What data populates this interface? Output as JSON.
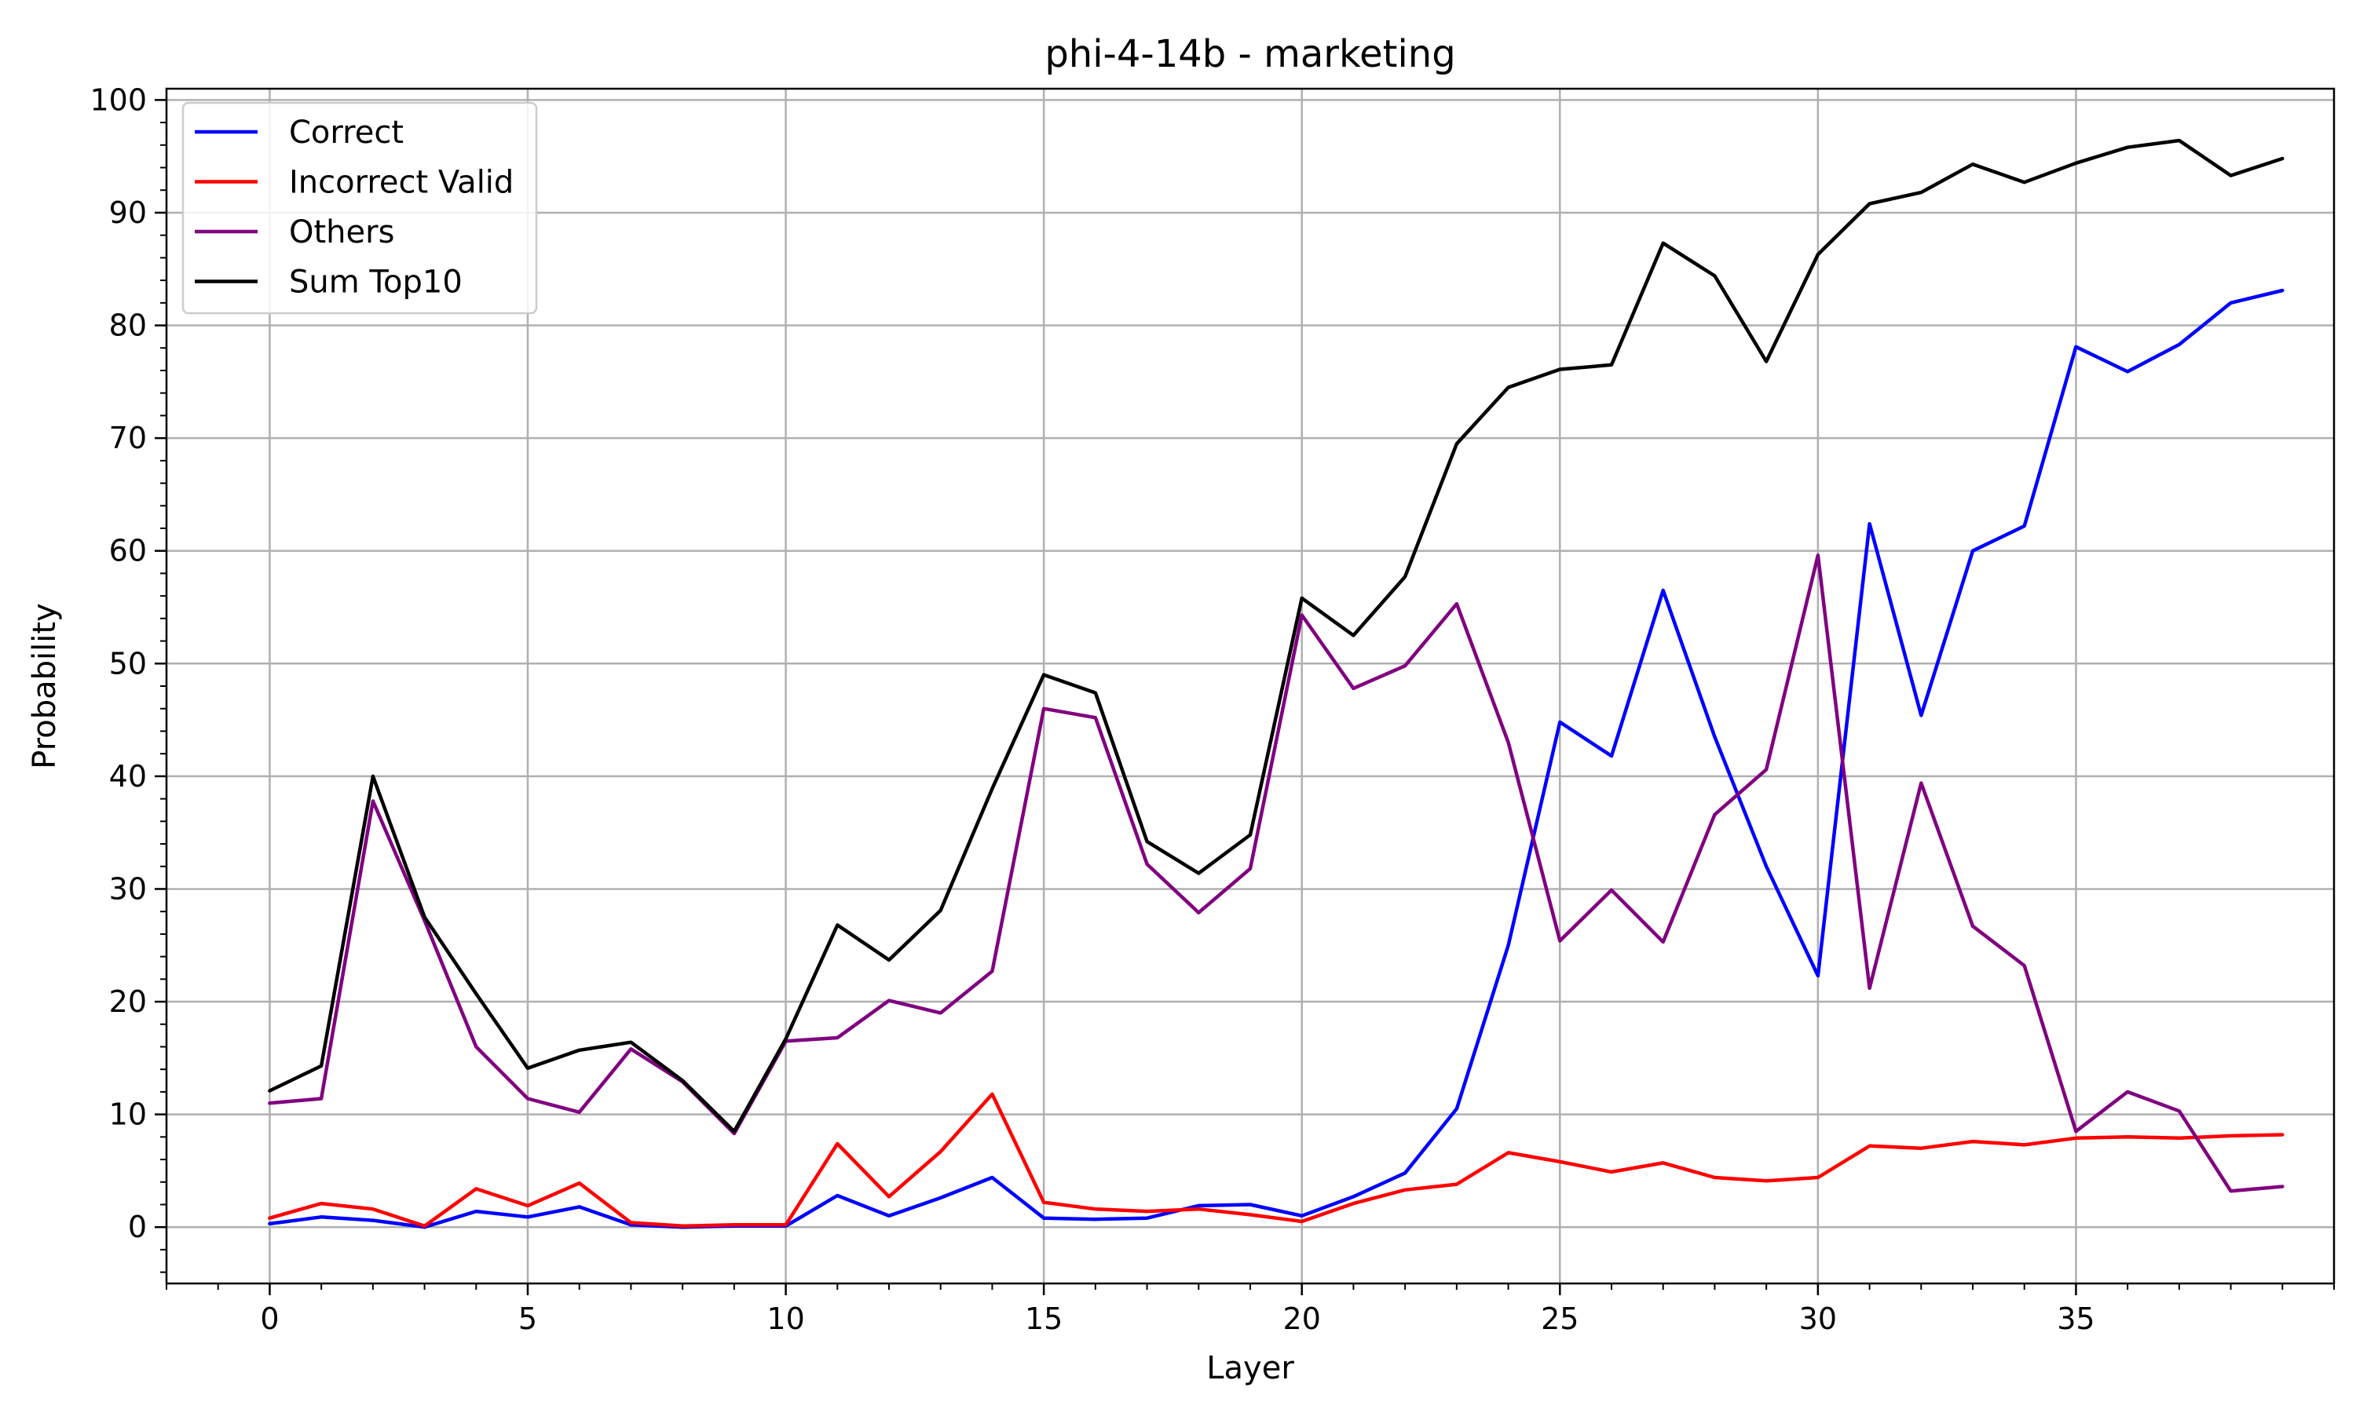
{
  "chart_data": {
    "type": "line",
    "title": "phi-4-14b - marketing",
    "xlabel": "Layer",
    "ylabel": "Probability",
    "xlim": [
      -2,
      40
    ],
    "ylim": [
      -5,
      101
    ],
    "xticks": [
      0,
      5,
      10,
      15,
      20,
      25,
      30,
      35
    ],
    "yticks": [
      0,
      10,
      20,
      30,
      40,
      50,
      60,
      70,
      80,
      90,
      100
    ],
    "grid": true,
    "legend_position": "top-left",
    "x": [
      0,
      1,
      2,
      3,
      4,
      5,
      6,
      7,
      8,
      9,
      10,
      11,
      12,
      13,
      14,
      15,
      16,
      17,
      18,
      19,
      20,
      21,
      22,
      23,
      24,
      25,
      26,
      27,
      28,
      29,
      30,
      31,
      32,
      33,
      34,
      35,
      36,
      37,
      38,
      39
    ],
    "series": [
      {
        "name": "Correct",
        "color": "#0000ff",
        "values": [
          0.3,
          0.9,
          0.6,
          0.0,
          1.4,
          0.9,
          1.8,
          0.2,
          0.0,
          0.1,
          0.1,
          2.8,
          1.0,
          2.6,
          4.4,
          0.8,
          0.7,
          0.8,
          1.9,
          2.0,
          1.0,
          2.7,
          4.8,
          10.5,
          25.0,
          44.8,
          41.8,
          56.5,
          43.5,
          32.0,
          22.3,
          62.4,
          45.4,
          60.0,
          62.2,
          78.1,
          75.9,
          78.3,
          82.0,
          83.1
        ]
      },
      {
        "name": "Incorrect Valid",
        "color": "#ff0000",
        "values": [
          0.8,
          2.1,
          1.6,
          0.1,
          3.4,
          1.9,
          3.9,
          0.4,
          0.1,
          0.2,
          0.2,
          7.4,
          2.7,
          6.7,
          11.8,
          2.2,
          1.6,
          1.4,
          1.6,
          1.1,
          0.5,
          2.1,
          3.3,
          3.8,
          6.6,
          5.8,
          4.9,
          5.7,
          4.4,
          4.1,
          4.4,
          7.2,
          7.0,
          7.6,
          7.3,
          7.9,
          8.0,
          7.9,
          8.1,
          8.2
        ]
      },
      {
        "name": "Others",
        "color": "#800080",
        "values": [
          11.0,
          11.4,
          37.8,
          27.2,
          16.0,
          11.4,
          10.2,
          15.8,
          12.9,
          8.3,
          16.5,
          16.8,
          20.1,
          19.0,
          22.7,
          46.0,
          45.2,
          32.2,
          27.9,
          31.8,
          54.3,
          47.8,
          49.8,
          55.3,
          43.0,
          25.4,
          29.9,
          25.3,
          36.6,
          40.6,
          59.6,
          21.2,
          39.4,
          26.7,
          23.2,
          8.5,
          12.0,
          10.3,
          3.2,
          3.6
        ]
      },
      {
        "name": "Sum Top10",
        "color": "#000000",
        "values": [
          12.1,
          14.3,
          40.0,
          27.5,
          20.7,
          14.1,
          15.7,
          16.4,
          13.0,
          8.5,
          16.7,
          26.8,
          23.7,
          28.1,
          38.9,
          49.0,
          47.4,
          34.2,
          31.4,
          34.8,
          55.8,
          52.5,
          57.7,
          69.5,
          74.5,
          76.1,
          76.5,
          87.3,
          84.4,
          76.8,
          86.3,
          90.8,
          91.8,
          94.3,
          92.7,
          94.4,
          95.8,
          96.4,
          93.3,
          94.8
        ]
      }
    ]
  }
}
